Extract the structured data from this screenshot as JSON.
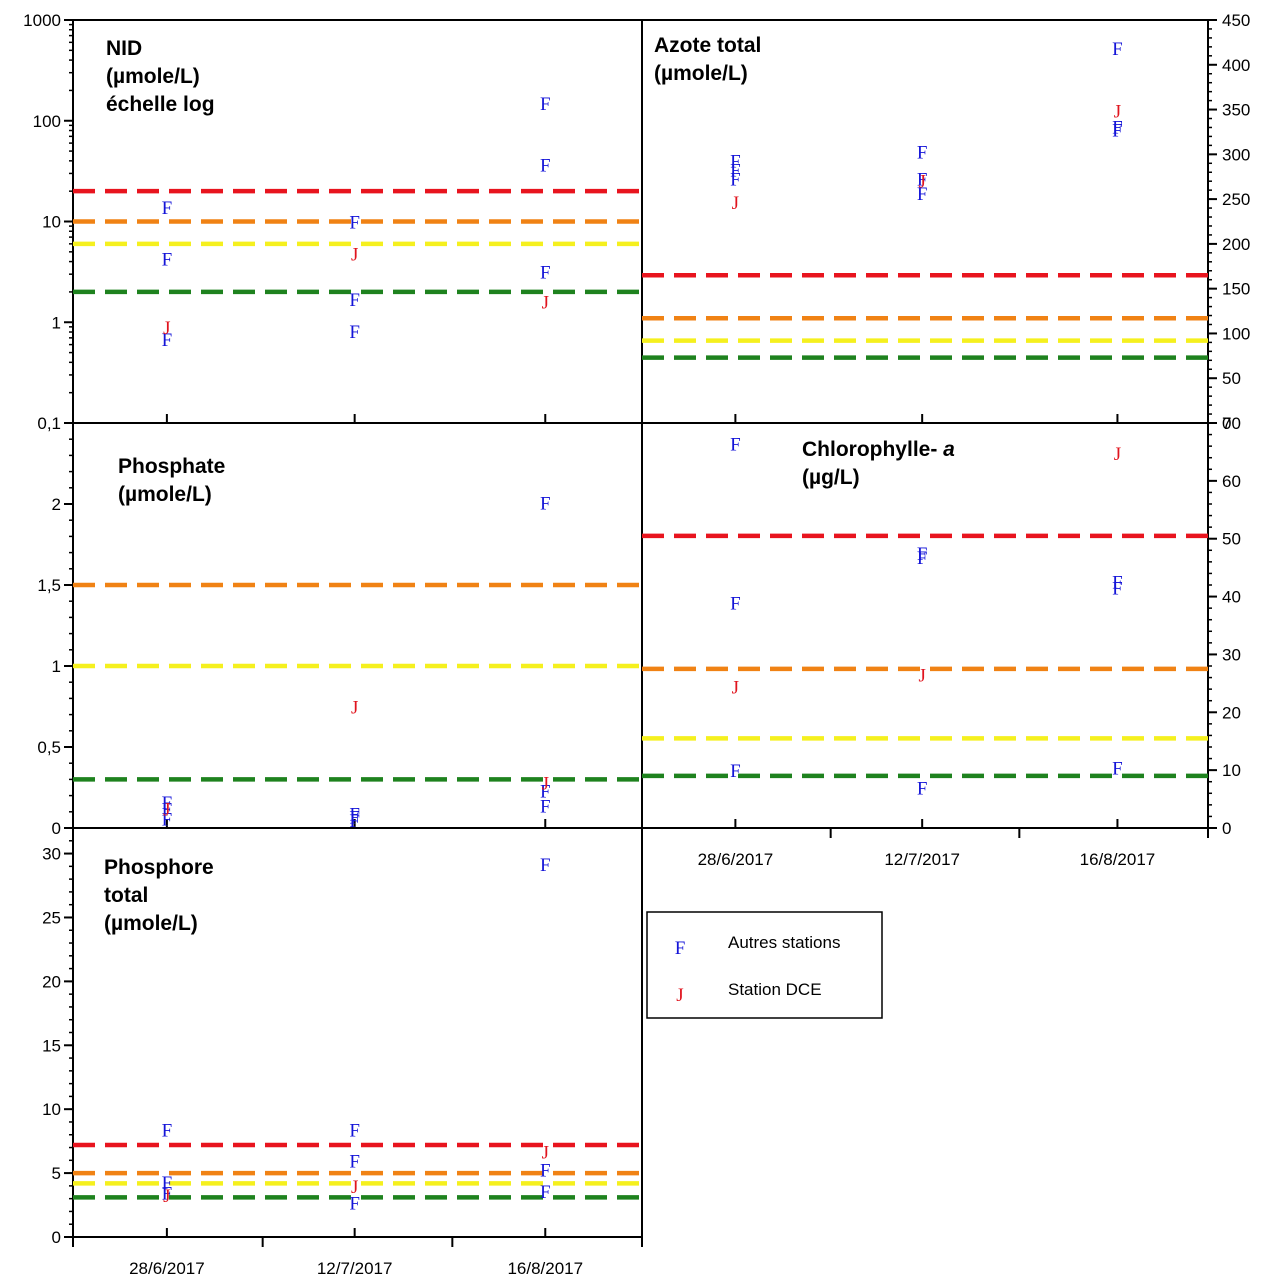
{
  "colors": {
    "autres": "#1414d8",
    "dce": "#e0141e",
    "red": "#e8141e",
    "orange": "#f08214",
    "yellow": "#f5f01e",
    "green": "#1e821e"
  },
  "legend": {
    "items": [
      {
        "symbol": "F",
        "label": "Autres stations",
        "color": "#1414d8"
      },
      {
        "symbol": "J",
        "label": "Station DCE",
        "color": "#e0141e"
      }
    ]
  },
  "x_categories": [
    "28/6/2017",
    "12/7/2017",
    "16/8/2017"
  ],
  "chart_data": [
    {
      "id": "nid",
      "type": "scatter",
      "title_lines": [
        "NID",
        "(µmole/L)",
        "échelle log"
      ],
      "y_scale": "log",
      "ylim": [
        0.1,
        1000
      ],
      "y_ticks": [
        {
          "v": 0.1,
          "label": "0,1"
        },
        {
          "v": 1,
          "label": "1"
        },
        {
          "v": 10,
          "label": "10"
        },
        {
          "v": 100,
          "label": "100"
        },
        {
          "v": 1000,
          "label": "1000"
        }
      ],
      "y_axis_side": "left",
      "thresholds": [
        {
          "level": "red",
          "value": 20
        },
        {
          "level": "orange",
          "value": 10
        },
        {
          "level": "yellow",
          "value": 6
        },
        {
          "level": "green",
          "value": 2
        }
      ],
      "series": [
        {
          "name": "Autres stations",
          "symbol": "F",
          "points": [
            [
              0,
              14
            ],
            [
              0,
              4.3
            ],
            [
              0,
              0.68
            ],
            [
              1,
              10
            ],
            [
              1,
              1.7
            ],
            [
              1,
              0.82
            ],
            [
              2,
              150
            ],
            [
              2,
              37
            ],
            [
              2,
              3.2
            ]
          ]
        },
        {
          "name": "Station DCE",
          "symbol": "J",
          "points": [
            [
              0,
              0.9
            ],
            [
              1,
              4.8
            ],
            [
              2,
              1.6
            ]
          ]
        }
      ]
    },
    {
      "id": "azote",
      "type": "scatter",
      "title_lines": [
        "Azote total",
        " (µmole/L)"
      ],
      "y_scale": "linear",
      "ylim": [
        0,
        450
      ],
      "y_ticks": [
        {
          "v": 0,
          "label": "0"
        },
        {
          "v": 50,
          "label": "50"
        },
        {
          "v": 100,
          "label": "100"
        },
        {
          "v": 150,
          "label": "150"
        },
        {
          "v": 200,
          "label": "200"
        },
        {
          "v": 250,
          "label": "250"
        },
        {
          "v": 300,
          "label": "300"
        },
        {
          "v": 350,
          "label": "350"
        },
        {
          "v": 400,
          "label": "400"
        },
        {
          "v": 450,
          "label": "450"
        }
      ],
      "y_axis_side": "right",
      "thresholds": [
        {
          "level": "red",
          "value": 165
        },
        {
          "level": "orange",
          "value": 117
        },
        {
          "level": "yellow",
          "value": 92
        },
        {
          "level": "green",
          "value": 73
        }
      ],
      "series": [
        {
          "name": "Autres stations",
          "symbol": "F",
          "points": [
            [
              0,
              293
            ],
            [
              0,
              283
            ],
            [
              0,
              273
            ],
            [
              1,
              303
            ],
            [
              1,
              273
            ],
            [
              1,
              257
            ],
            [
              2,
              419
            ],
            [
              2,
              331
            ],
            [
              2,
              328
            ]
          ]
        },
        {
          "name": "Station DCE",
          "symbol": "J",
          "points": [
            [
              0,
              247
            ],
            [
              1,
              271
            ],
            [
              2,
              349
            ]
          ]
        }
      ]
    },
    {
      "id": "phosphate",
      "type": "scatter",
      "title_lines": [
        "Phosphate",
        " (µmole/L)"
      ],
      "y_scale": "linear",
      "ylim": [
        0,
        2.5
      ],
      "y_ticks": [
        {
          "v": 0,
          "label": "0"
        },
        {
          "v": 0.5,
          "label": "0,5"
        },
        {
          "v": 1,
          "label": "1"
        },
        {
          "v": 1.5,
          "label": "1,5"
        },
        {
          "v": 2,
          "label": "2"
        }
      ],
      "y_axis_side": "left",
      "thresholds": [
        {
          "level": "orange",
          "value": 1.5
        },
        {
          "level": "yellow",
          "value": 1.0
        },
        {
          "level": "green",
          "value": 0.3
        }
      ],
      "series": [
        {
          "name": "Autres stations",
          "symbol": "F",
          "points": [
            [
              0,
              0.16
            ],
            [
              0,
              0.12
            ],
            [
              0,
              0.06
            ],
            [
              1,
              0.09
            ],
            [
              1,
              0.07
            ],
            [
              1,
              0.05
            ],
            [
              2,
              2.01
            ],
            [
              2,
              0.23
            ],
            [
              2,
              0.14
            ]
          ]
        },
        {
          "name": "Station DCE",
          "symbol": "J",
          "points": [
            [
              0,
              0.12
            ],
            [
              1,
              0.75
            ],
            [
              2,
              0.28
            ]
          ]
        }
      ]
    },
    {
      "id": "chlorophylle",
      "type": "scatter",
      "title_lines": [
        "Chlorophylle- a",
        " (µg/L)"
      ],
      "title_italic_suffix": "a",
      "y_scale": "linear",
      "ylim": [
        0,
        70
      ],
      "y_ticks": [
        {
          "v": 0,
          "label": "0"
        },
        {
          "v": 10,
          "label": "10"
        },
        {
          "v": 20,
          "label": "20"
        },
        {
          "v": 30,
          "label": "30"
        },
        {
          "v": 40,
          "label": "40"
        },
        {
          "v": 50,
          "label": "50"
        },
        {
          "v": 60,
          "label": "60"
        },
        {
          "v": 70,
          "label": "70"
        }
      ],
      "y_axis_side": "right",
      "thresholds": [
        {
          "level": "red",
          "value": 50.5
        },
        {
          "level": "orange",
          "value": 27.5
        },
        {
          "level": "yellow",
          "value": 15.5
        },
        {
          "level": "green",
          "value": 9
        }
      ],
      "series": [
        {
          "name": "Autres stations",
          "symbol": "F",
          "points": [
            [
              0,
              66.5
            ],
            [
              0,
              39
            ],
            [
              0,
              10
            ],
            [
              1,
              47.5
            ],
            [
              1,
              46.8
            ],
            [
              1,
              7
            ],
            [
              2,
              42.6
            ],
            [
              2,
              41.6
            ],
            [
              2,
              10.5
            ]
          ]
        },
        {
          "name": "Station DCE",
          "symbol": "J",
          "points": [
            [
              0,
              24.5
            ],
            [
              1,
              26.5
            ],
            [
              2,
              64.8
            ]
          ]
        }
      ]
    },
    {
      "id": "phosphore",
      "type": "scatter",
      "title_lines": [
        "Phosphore",
        "total",
        " (µmole/L)"
      ],
      "y_scale": "linear",
      "ylim": [
        0,
        32
      ],
      "y_ticks": [
        {
          "v": 0,
          "label": "0"
        },
        {
          "v": 5,
          "label": "5"
        },
        {
          "v": 10,
          "label": "10"
        },
        {
          "v": 15,
          "label": "15"
        },
        {
          "v": 20,
          "label": "20"
        },
        {
          "v": 25,
          "label": "25"
        },
        {
          "v": 30,
          "label": "30"
        }
      ],
      "y_axis_side": "left",
      "thresholds": [
        {
          "level": "red",
          "value": 7.2
        },
        {
          "level": "orange",
          "value": 5
        },
        {
          "level": "yellow",
          "value": 4.2
        },
        {
          "level": "green",
          "value": 3.1
        }
      ],
      "series": [
        {
          "name": "Autres stations",
          "symbol": "F",
          "points": [
            [
              0,
              8.4
            ],
            [
              0,
              4.3
            ],
            [
              0,
              3.5
            ],
            [
              1,
              8.4
            ],
            [
              1,
              6.0
            ],
            [
              1,
              2.7
            ],
            [
              2,
              29.2
            ],
            [
              2,
              5.3
            ],
            [
              2,
              3.6
            ]
          ]
        },
        {
          "name": "Station DCE",
          "symbol": "J",
          "points": [
            [
              0,
              3.3
            ],
            [
              1,
              4.0
            ],
            [
              2,
              6.7
            ]
          ]
        }
      ]
    }
  ]
}
